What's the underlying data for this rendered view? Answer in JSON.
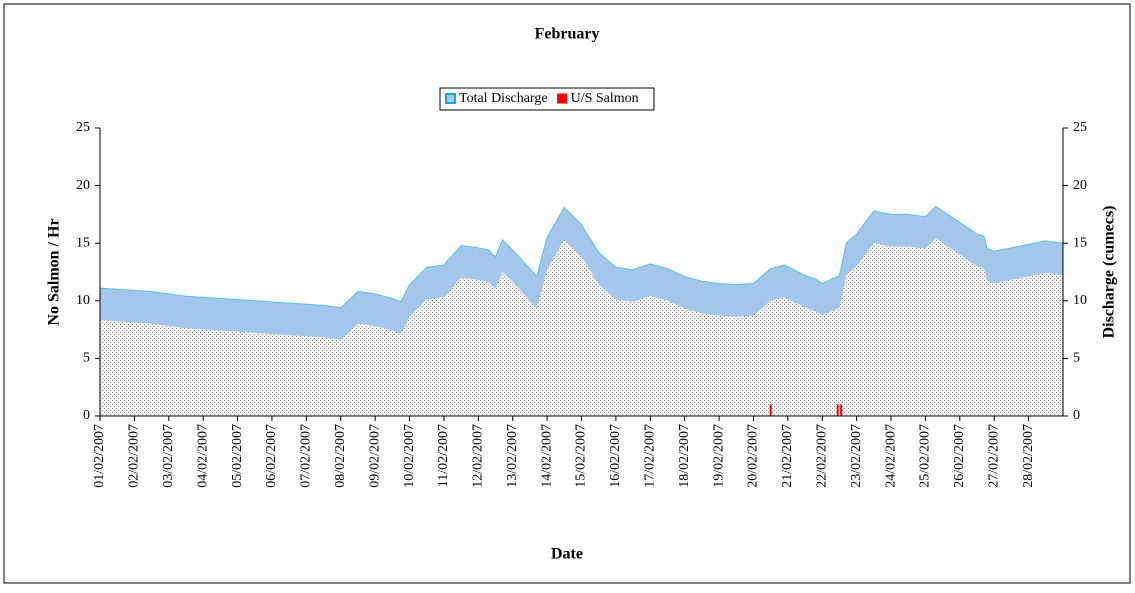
{
  "chart_data": {
    "type": "area-bar",
    "title": "February",
    "x_label": "Date",
    "y_label": "No Salmon / Hr",
    "y2_label": "Discharge (cumecs)",
    "xlim": [
      1,
      29
    ],
    "xticks": [
      {
        "value": 1,
        "label": "01/02/2007"
      },
      {
        "value": 2,
        "label": "02/02/2007"
      },
      {
        "value": 3,
        "label": "03/02/2007"
      },
      {
        "value": 4,
        "label": "04/02/2007"
      },
      {
        "value": 5,
        "label": "05/02/2007"
      },
      {
        "value": 6,
        "label": "06/02/2007"
      },
      {
        "value": 7,
        "label": "07/02/2007"
      },
      {
        "value": 8,
        "label": "08/02/2007"
      },
      {
        "value": 9,
        "label": "09/02/2007"
      },
      {
        "value": 10,
        "label": "10/02/2007"
      },
      {
        "value": 11,
        "label": "11/02/2007"
      },
      {
        "value": 12,
        "label": "12/02/2007"
      },
      {
        "value": 13,
        "label": "13/02/2007"
      },
      {
        "value": 14,
        "label": "14/02/2007"
      },
      {
        "value": 15,
        "label": "15/02/2007"
      },
      {
        "value": 16,
        "label": "16/02/2007"
      },
      {
        "value": 17,
        "label": "17/02/2007"
      },
      {
        "value": 18,
        "label": "18/02/2007"
      },
      {
        "value": 19,
        "label": "19/02/2007"
      },
      {
        "value": 20,
        "label": "20/02/2007"
      },
      {
        "value": 21,
        "label": "21/02/2007"
      },
      {
        "value": 22,
        "label": "22/02/2007"
      },
      {
        "value": 23,
        "label": "23/02/2007"
      },
      {
        "value": 24,
        "label": "24/02/2007"
      },
      {
        "value": 25,
        "label": "25/02/2007"
      },
      {
        "value": 26,
        "label": "26/02/2007"
      },
      {
        "value": 27,
        "label": "27/02/2007"
      },
      {
        "value": 28,
        "label": "28/02/2007"
      }
    ],
    "ylim": [
      0,
      25
    ],
    "yticks": [
      0,
      5,
      10,
      15,
      20,
      25
    ],
    "y2lim": [
      0,
      25
    ],
    "y2ticks": [
      0,
      5,
      10,
      15,
      20,
      25
    ],
    "series": [
      {
        "name": "Total Discharge",
        "color": "#a3c6ec",
        "axis": "y2",
        "x": [
          1,
          1.5,
          2,
          2.5,
          3,
          3.5,
          4,
          4.5,
          5,
          5.5,
          6,
          6.5,
          7,
          7.5,
          8,
          8.5,
          9,
          9.5,
          9.75,
          10,
          10.5,
          11,
          11.5,
          12,
          12.3,
          12.5,
          12.7,
          13,
          13.5,
          13.7,
          14,
          14.5,
          15,
          15.5,
          16,
          16.5,
          17,
          17.5,
          18,
          18.5,
          19,
          19.5,
          20,
          20.5,
          20.9,
          21.5,
          21.8,
          22,
          22.5,
          22.7,
          23,
          23.5,
          24,
          24.5,
          25,
          25.3,
          25.5,
          26,
          26.5,
          26.7,
          26.8,
          27,
          27.5,
          28,
          28.5,
          29
        ],
        "values": [
          11.1,
          11.0,
          10.9,
          10.8,
          10.6,
          10.4,
          10.3,
          10.2,
          10.1,
          10.0,
          9.9,
          9.8,
          9.7,
          9.6,
          9.4,
          10.8,
          10.6,
          10.2,
          9.9,
          11.4,
          12.9,
          13.1,
          14.8,
          14.6,
          14.4,
          13.8,
          15.3,
          14.4,
          12.8,
          12.1,
          15.5,
          18.1,
          16.6,
          14.2,
          12.9,
          12.7,
          13.2,
          12.8,
          12.1,
          11.7,
          11.5,
          11.4,
          11.5,
          12.8,
          13.1,
          12.2,
          11.9,
          11.5,
          12.2,
          15.0,
          15.8,
          17.8,
          17.5,
          17.5,
          17.3,
          18.2,
          17.8,
          16.8,
          15.8,
          15.6,
          14.5,
          14.3,
          14.6,
          14.9,
          15.2,
          15.0
        ]
      },
      {
        "name": "U/S Salmon",
        "color": "#ff0000",
        "axis": "y",
        "x": [
          20.5,
          22.45,
          22.55
        ],
        "values": [
          1,
          1,
          1
        ]
      }
    ]
  }
}
